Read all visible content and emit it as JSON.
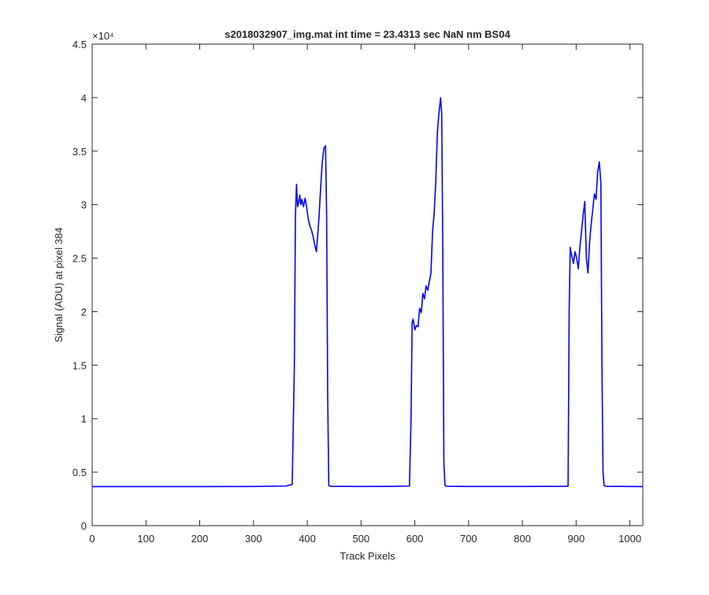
{
  "chart_data": {
    "type": "line",
    "title": "s2018032907_img.mat int time = 23.4313 sec  NaN nm BS04",
    "xlabel": "Track Pixels",
    "ylabel": "Signal (ADU) at pixel 384",
    "y_exponent_label": "×10⁴",
    "y_scale": 10000,
    "xlim": [
      0,
      1024
    ],
    "ylim": [
      0,
      45000
    ],
    "grid": false,
    "line_color": "#0000ff",
    "x_ticks": [
      0,
      100,
      200,
      300,
      400,
      500,
      600,
      700,
      800,
      900,
      1000
    ],
    "x_tick_labels": [
      "0",
      "100",
      "200",
      "300",
      "400",
      "500",
      "600",
      "700",
      "800",
      "900",
      "1000"
    ],
    "y_ticks": [
      0,
      5000,
      10000,
      15000,
      20000,
      25000,
      30000,
      35000,
      40000,
      45000
    ],
    "y_tick_labels": [
      "0",
      "0.5",
      "1",
      "1.5",
      "2",
      "2.5",
      "3",
      "3.5",
      "4",
      "4.5"
    ],
    "series": [
      {
        "x": [
          0,
          100,
          200,
          300,
          360,
          372,
          376,
          378,
          380,
          382,
          384,
          386,
          388,
          390,
          393,
          396,
          399,
          402,
          405,
          408,
          411,
          414,
          417,
          420,
          422,
          424,
          426,
          428,
          431,
          434,
          436,
          438,
          440,
          442,
          444,
          500,
          560,
          590,
          593,
          595,
          597,
          600,
          603,
          606,
          609,
          612,
          615,
          618,
          621,
          624,
          627,
          630,
          633,
          636,
          639,
          642,
          645,
          648,
          650,
          652,
          654,
          656,
          658,
          662,
          700,
          800,
          880,
          885,
          887,
          889,
          892,
          895,
          898,
          901,
          904,
          907,
          910,
          913,
          916,
          919,
          922,
          925,
          928,
          931,
          934,
          937,
          940,
          943,
          946,
          948,
          950,
          952,
          956,
          1000,
          1024
        ],
        "y": [
          3650,
          3650,
          3650,
          3660,
          3700,
          3850,
          15000,
          29000,
          31900,
          29800,
          30200,
          30900,
          30000,
          30500,
          29800,
          30600,
          29700,
          28600,
          28000,
          27600,
          27000,
          26200,
          25600,
          27500,
          29000,
          30800,
          32500,
          34000,
          35300,
          35500,
          29000,
          12000,
          3750,
          3700,
          3680,
          3660,
          3670,
          3700,
          10000,
          19000,
          19300,
          18300,
          18700,
          18600,
          20300,
          19900,
          21700,
          21200,
          22400,
          22000,
          22800,
          23600,
          27500,
          29200,
          32200,
          36800,
          38600,
          40000,
          38500,
          26000,
          6000,
          3800,
          3700,
          3680,
          3660,
          3660,
          3680,
          3700,
          20000,
          26000,
          25200,
          24500,
          25600,
          25000,
          24000,
          26000,
          27500,
          29000,
          30300,
          25000,
          23600,
          26500,
          28200,
          29600,
          31000,
          30500,
          33000,
          34000,
          32000,
          15000,
          5000,
          3750,
          3680,
          3660,
          3650
        ]
      }
    ]
  }
}
